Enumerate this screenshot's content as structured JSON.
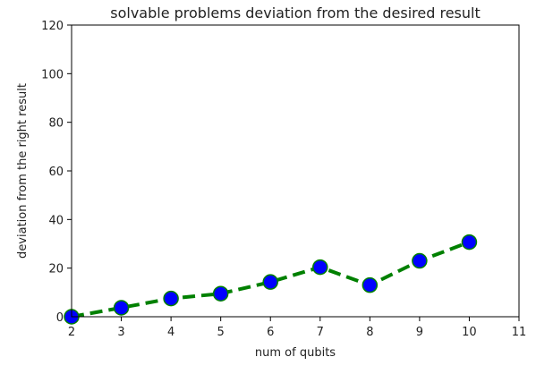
{
  "chart_data": {
    "type": "line",
    "title": "solvable problems deviation from the desired result",
    "xlabel": "num of qubits",
    "ylabel": "deviation from the right result",
    "xlim": [
      2,
      11
    ],
    "ylim": [
      0,
      120
    ],
    "xticks": [
      2,
      3,
      4,
      5,
      6,
      7,
      8,
      9,
      10,
      11
    ],
    "yticks": [
      0,
      20,
      40,
      60,
      80,
      100,
      120
    ],
    "grid": false,
    "series": [
      {
        "x": [
          2,
          3,
          4,
          5,
          6,
          7,
          8,
          9,
          10
        ],
        "y": [
          0,
          3.7,
          7.5,
          9.5,
          14.3,
          20.4,
          13.0,
          23.0,
          30.7
        ],
        "line_color": "#008000",
        "line_style": "dashed",
        "marker": "circle",
        "marker_face_color": "#0000ff",
        "marker_edge_color": "#008000"
      }
    ]
  }
}
